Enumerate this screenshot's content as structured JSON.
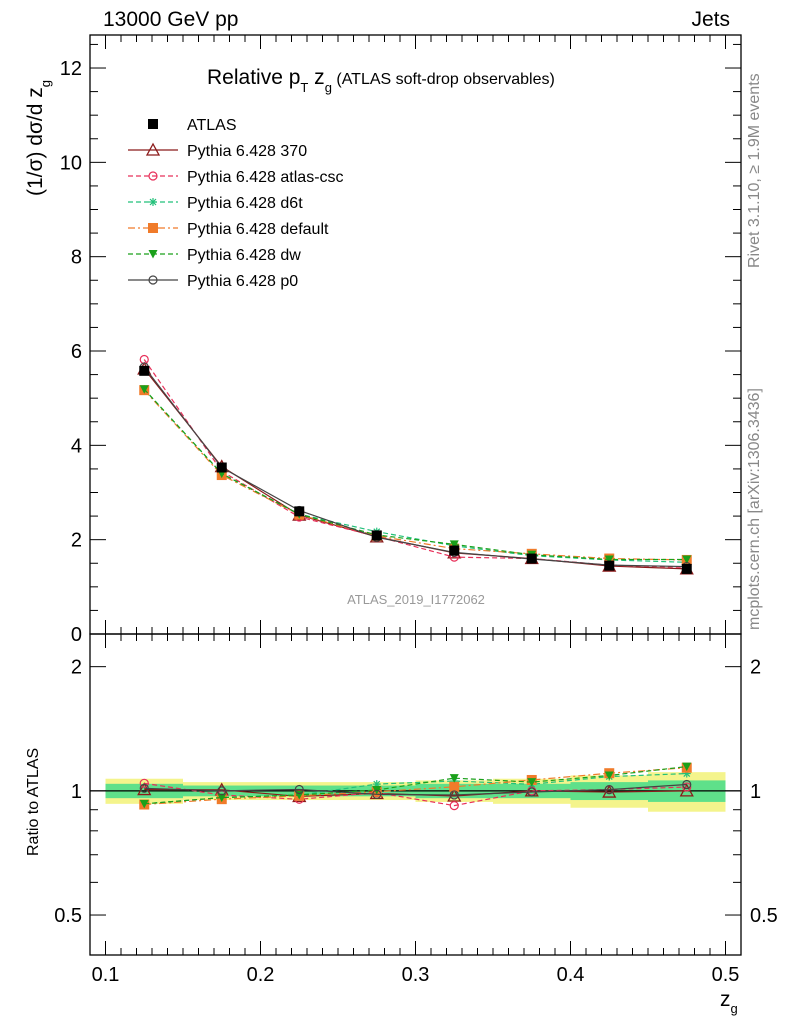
{
  "header": {
    "left_label": "13000 GeV pp",
    "right_label": "Jets",
    "rivet_label": "Rivet 3.1.10, ≥ 1.9M events",
    "mcplots_label": "mcplots.cern.ch [arXiv:1306.3436]"
  },
  "chart_data": {
    "type": "line",
    "title_main": "Relative p",
    "title_sub1": "T",
    "title_mid": " z",
    "title_sub2": "g",
    "title_tail": " (ATLAS soft-drop observables)",
    "ylabel": "(1/σ) dσ/d z",
    "ylabel_sub": "g",
    "ratio_ylabel": "Ratio to ATLAS",
    "xlabel": "z",
    "xlabel_sub": "g",
    "watermark": "ATLAS_2019_I1772062",
    "xlim": [
      0.09,
      0.51
    ],
    "ylim": [
      0,
      12.7
    ],
    "ratio_ylim": [
      0.4,
      2.4
    ],
    "x_ticks": [
      "0.1",
      "0.2",
      "0.3",
      "0.4",
      "0.5"
    ],
    "y_ticks": [
      "0",
      "2",
      "4",
      "6",
      "8",
      "10",
      "12"
    ],
    "ratio_ticks": [
      "0.5",
      "1",
      "2"
    ],
    "x": [
      0.125,
      0.175,
      0.225,
      0.275,
      0.325,
      0.375,
      0.425,
      0.475
    ],
    "bin_edges": [
      0.1,
      0.15,
      0.2,
      0.25,
      0.3,
      0.35,
      0.4,
      0.45,
      0.5
    ],
    "data": {
      "name": "ATLAS",
      "values": [
        5.58,
        3.53,
        2.6,
        2.09,
        1.77,
        1.6,
        1.45,
        1.38
      ],
      "band_inner": [
        0.04,
        0.03,
        0.03,
        0.03,
        0.04,
        0.04,
        0.05,
        0.06
      ],
      "band_outer": [
        0.07,
        0.05,
        0.05,
        0.05,
        0.06,
        0.07,
        0.09,
        0.11
      ]
    },
    "series": [
      {
        "name": "Pythia 6.428 370",
        "color": "#8b1a1a",
        "marker": "triangle-open",
        "dash": "solid",
        "values": [
          5.62,
          3.55,
          2.52,
          2.06,
          1.72,
          1.6,
          1.44,
          1.38
        ]
      },
      {
        "name": "Pythia 6.428 atlas-csc",
        "color": "#e8305a",
        "marker": "circle-open",
        "dash": "dashed",
        "values": [
          5.82,
          3.45,
          2.48,
          2.07,
          1.63,
          1.6,
          1.46,
          1.41
        ]
      },
      {
        "name": "Pythia 6.428 d6t",
        "color": "#22c07a",
        "marker": "star",
        "dash": "dashed",
        "values": [
          5.19,
          3.4,
          2.54,
          2.17,
          1.87,
          1.66,
          1.57,
          1.52
        ]
      },
      {
        "name": "Pythia 6.428 default",
        "color": "#f07b2a",
        "marker": "square",
        "dash": "dashdot",
        "values": [
          5.17,
          3.37,
          2.53,
          2.08,
          1.81,
          1.7,
          1.6,
          1.57
        ]
      },
      {
        "name": "Pythia 6.428 dw",
        "color": "#1aa01a",
        "marker": "triangle-down",
        "dash": "dashed",
        "values": [
          5.19,
          3.4,
          2.54,
          2.1,
          1.9,
          1.68,
          1.58,
          1.58
        ]
      },
      {
        "name": "Pythia 6.428 p0",
        "color": "#444444",
        "marker": "circle-open",
        "dash": "solid",
        "values": [
          5.66,
          3.53,
          2.62,
          2.05,
          1.73,
          1.59,
          1.46,
          1.43
        ]
      }
    ],
    "colors": {
      "band_inner": "#5fe08a",
      "band_outer": "#f4f48c",
      "watermark": "#999999"
    }
  }
}
